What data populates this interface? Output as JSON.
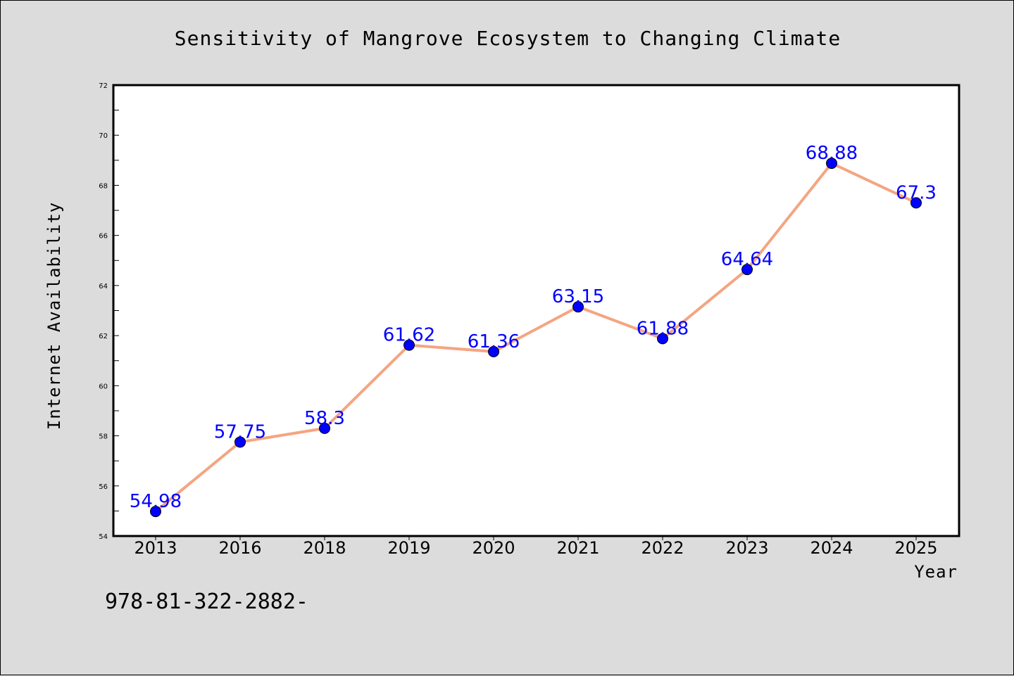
{
  "chart_data": {
    "type": "line",
    "title": "Sensitivity of Mangrove Ecosystem to Changing Climate",
    "xlabel": "Year",
    "ylabel": "Internet Availability",
    "categories": [
      "2013",
      "2016",
      "2018",
      "2019",
      "2020",
      "2021",
      "2022",
      "2023",
      "2024",
      "2025"
    ],
    "series": [
      {
        "values": [
          54.98,
          57.75,
          58.3,
          61.62,
          61.36,
          63.15,
          61.88,
          64.64,
          68.88,
          67.3
        ],
        "data_labels": [
          "54.98",
          "57.75",
          "58.3",
          "61.62",
          "61.36",
          "63.15",
          "61.88",
          "64.64",
          "68.88",
          "67.3"
        ],
        "line_color": "#f4a582",
        "marker_color": "#0000ff"
      }
    ],
    "ylim": [
      54,
      72
    ],
    "yticks": [
      54,
      56,
      58,
      60,
      62,
      64,
      66,
      68,
      70,
      72
    ],
    "grid": false,
    "legend": "none"
  },
  "footnote": "978-81-322-2882-",
  "colors": {
    "background": "#dcdcdc",
    "plot_background": "#ffffff",
    "line": "#f4a582",
    "marker": "#0000ff",
    "data_label": "#0000ff"
  }
}
